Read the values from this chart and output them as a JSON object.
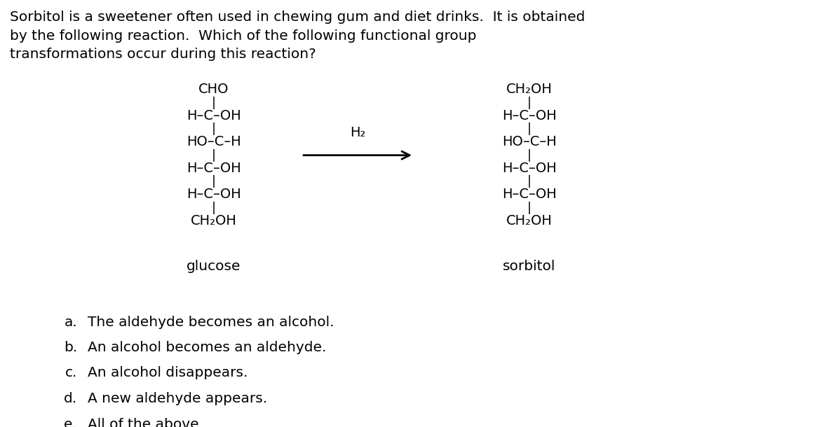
{
  "background_color": "#ffffff",
  "title_text": "Sorbitol is a sweetener often used in chewing gum and diet drinks.  It is obtained\nby the following reaction.  Which of the following functional group\ntransformations occur during this reaction?",
  "title_fontsize": 14.5,
  "font_family": "DejaVu Sans",
  "glucose_label": "glucose",
  "sorbitol_label": "sorbitol",
  "glucose_lines": [
    "CHO",
    "H–C–OH",
    "HO–C–H",
    "H–C–OH",
    "H–C–OH",
    "CH₂OH"
  ],
  "sorbitol_lines": [
    "CH₂OH",
    "H–C–OH",
    "HO–C–H",
    "H–C–OH",
    "H–C–OH",
    "CH₂OH"
  ],
  "h2_label": "H₂",
  "choices_letters": [
    "a.",
    "b.",
    "c.",
    "d.",
    "e."
  ],
  "choices_text": [
    "The aldehyde becomes an alcohol.",
    "An alcohol becomes an aldehyde.",
    "An alcohol disappears.",
    "A new aldehyde appears.",
    "All of the above"
  ],
  "choice_fontsize": 14.5,
  "struct_fontsize": 14.0,
  "label_fontsize": 14.5,
  "connector": "–"
}
